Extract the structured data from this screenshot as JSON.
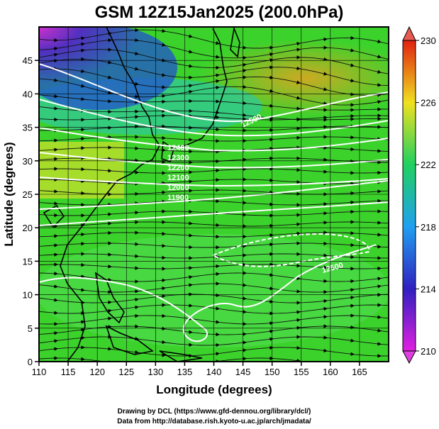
{
  "title": "GSM 12Z15Jan2025 (200.0hPa)",
  "xlabel": "Longitude (degrees)",
  "ylabel": "Latitude  (degrees)",
  "credits": {
    "line1": "Drawing by DCL (https://www.gfd-dennou.org/library/dcl/)",
    "line2": "Data from http://database.rish.kyoto-u.ac.jp/arch/jmadata/"
  },
  "chart_data": {
    "type": "heatmap",
    "field": "200 hPa temperature shading with streamlines and contours",
    "xlim": [
      110,
      170
    ],
    "ylim": [
      0,
      50
    ],
    "x_ticks": [
      110,
      115,
      120,
      125,
      130,
      135,
      140,
      145,
      150,
      155,
      160,
      165
    ],
    "y_ticks": [
      0,
      5,
      10,
      15,
      20,
      25,
      30,
      35,
      40,
      45
    ],
    "colorbar": {
      "range": [
        210,
        230
      ],
      "ticks": [
        210,
        214,
        218,
        222,
        226,
        230
      ],
      "colors": [
        "#e020e0",
        "#3020c0",
        "#20a0f0",
        "#20d060",
        "#f0e020",
        "#e02010"
      ]
    },
    "contour_labels": [
      "12500",
      "12400",
      "12300",
      "12200",
      "12100",
      "12000",
      "11900",
      "12500"
    ],
    "grid": true
  }
}
